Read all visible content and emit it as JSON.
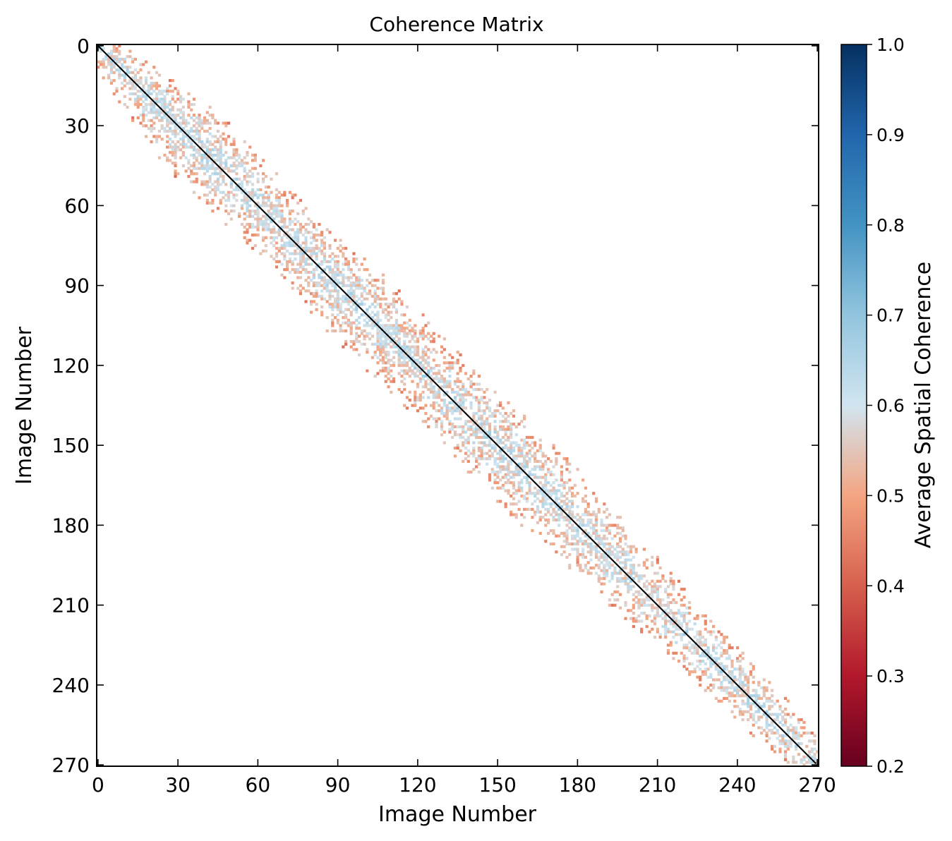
{
  "chart_data": {
    "type": "heatmap",
    "title": "Coherence Matrix",
    "xlabel": "Image Number",
    "ylabel": "Image Number",
    "xlim": [
      0,
      271
    ],
    "ylim": [
      271,
      0
    ],
    "matrix_size": 271,
    "x_ticks": [
      "0",
      "30",
      "60",
      "90",
      "120",
      "150",
      "180",
      "210",
      "240",
      "270"
    ],
    "y_ticks": [
      "0",
      "30",
      "60",
      "90",
      "120",
      "150",
      "180",
      "210",
      "240",
      "270"
    ],
    "colorbar": {
      "label": "Average Spatial Coherence",
      "range": [
        0.2,
        1.0
      ],
      "ticks": [
        "0.2",
        "0.3",
        "0.4",
        "0.5",
        "0.6",
        "0.7",
        "0.8",
        "0.9",
        "1.0"
      ],
      "colormap": "RdBu",
      "colors_low_to_high": [
        "#67001f",
        "#b2182b",
        "#d6604d",
        "#f4a582",
        "#d1e5f0",
        "#92c5de",
        "#4393c3",
        "#2166ac",
        "#053061"
      ],
      "values_above_threshold_not_shown": 0.7
    },
    "diagonal": {
      "value": 1.0,
      "color": "#000000"
    },
    "off_diagonal_band": {
      "description_values": "pairs near the diagonal have coherence between 0.3 and 0.7; pairs far from the diagonal are empty",
      "band_half_width_by_row": [
        {
          "row": 0,
          "half_width": 10
        },
        {
          "row": 30,
          "half_width": 22
        },
        {
          "row": 60,
          "half_width": 18
        },
        {
          "row": 90,
          "half_width": 22
        },
        {
          "row": 120,
          "half_width": 20
        },
        {
          "row": 150,
          "half_width": 22
        },
        {
          "row": 180,
          "half_width": 20
        },
        {
          "row": 210,
          "half_width": 16
        },
        {
          "row": 240,
          "half_width": 14
        },
        {
          "row": 270,
          "half_width": 10
        }
      ],
      "value_range": [
        0.3,
        0.7
      ],
      "near_diagonal_typical_value": 0.62,
      "band_edge_typical_value": 0.48
    }
  }
}
